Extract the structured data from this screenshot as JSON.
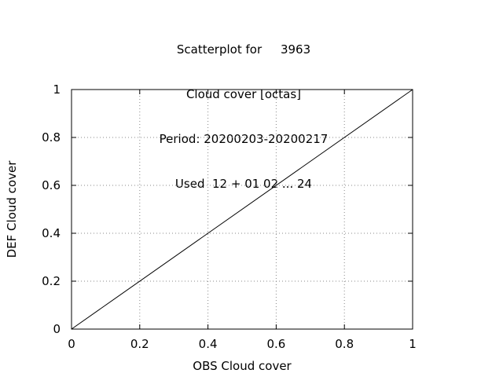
{
  "chart_data": {
    "type": "line",
    "title_lines": [
      "Scatterplot for     3963",
      "Cloud cover [octas]",
      "Period: 20200203-20200217",
      "Used  12 + 01 02 ... 24"
    ],
    "xlabel": "OBS Cloud cover",
    "ylabel": "DEF Cloud cover",
    "xlim": [
      0,
      1
    ],
    "ylim": [
      0,
      1
    ],
    "x_ticks": [
      "0",
      "0.2",
      "0.4",
      "0.6",
      "0.8",
      "1"
    ],
    "y_ticks": [
      "0",
      "0.2",
      "0.4",
      "0.6",
      "0.8",
      "1"
    ],
    "grid": true,
    "series": [
      {
        "x": [
          0,
          1
        ],
        "y": [
          0,
          1
        ],
        "color": "#000000"
      }
    ]
  }
}
